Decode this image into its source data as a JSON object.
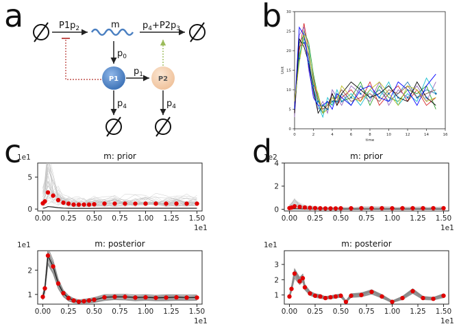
{
  "panels": {
    "a": {
      "letter": "a",
      "labels": {
        "rate_in": "P1p",
        "rate_in_sub": "2",
        "mrna": "m",
        "rate_out": "p",
        "rate_out_sub": "4",
        "rate_out_mid": "+P2p",
        "rate_out_sub2": "3",
        "p0": "p",
        "p0_sub": "0",
        "p1": "p",
        "p1_sub": "1",
        "p4_left": "p",
        "p4_left_sub": "4",
        "p4_right": "p",
        "p4_right_sub": "4",
        "protein1": "P1",
        "protein2": "P2"
      },
      "colors": {
        "p1_node": "#4f86c6",
        "p2_node": "#f5d3b3",
        "mrna_wave": "#4a7fc1",
        "repression": "#c0504d",
        "activation": "#9bbb59"
      }
    },
    "b": {
      "letter": "b",
      "chart_data": {
        "type": "line",
        "xlabel": "time",
        "ylabel": "Unit",
        "xlim": [
          0,
          16
        ],
        "ylim": [
          0,
          30
        ],
        "xticks": [
          "0",
          "2",
          "4",
          "6",
          "8",
          "10",
          "12",
          "14",
          "16"
        ],
        "yticks": [
          "0",
          "5",
          "10",
          "15",
          "20",
          "25",
          "30"
        ],
        "x": [
          0,
          0.5,
          1,
          1.5,
          2,
          2.5,
          3,
          3.5,
          4,
          4.5,
          5,
          6,
          7,
          8,
          9,
          10,
          11,
          12,
          13,
          14,
          15
        ],
        "series": [
          {
            "color": "#1f77b4",
            "values": [
              5,
              22,
              24,
              18,
              10,
              6,
              4,
              5,
              8,
              7,
              9,
              6,
              11,
              8,
              10,
              7,
              9,
              12,
              8,
              10,
              9
            ]
          },
          {
            "color": "#d62728",
            "values": [
              4,
              20,
              27,
              20,
              12,
              7,
              5,
              6,
              9,
              6,
              8,
              10,
              7,
              12,
              6,
              9,
              11,
              7,
              10,
              6,
              8
            ]
          },
          {
            "color": "#2ca02c",
            "values": [
              6,
              18,
              25,
              22,
              14,
              8,
              4,
              7,
              6,
              9,
              7,
              8,
              12,
              6,
              11,
              8,
              7,
              10,
              9,
              11,
              5
            ]
          },
          {
            "color": "#9467bd",
            "values": [
              3,
              24,
              26,
              15,
              9,
              5,
              7,
              4,
              10,
              8,
              6,
              11,
              9,
              7,
              12,
              6,
              10,
              8,
              11,
              7,
              12
            ]
          },
          {
            "color": "#17becf",
            "values": [
              5,
              19,
              23,
              21,
              11,
              6,
              3,
              8,
              6,
              10,
              7,
              9,
              6,
              10,
              8,
              12,
              6,
              9,
              7,
              13,
              9
            ]
          },
          {
            "color": "#8c564b",
            "values": [
              6,
              21,
              22,
              19,
              13,
              7,
              5,
              6,
              7,
              8,
              10,
              7,
              8,
              9,
              7,
              10,
              9,
              11,
              8,
              9,
              10
            ]
          },
          {
            "color": "#000000",
            "values": [
              4,
              23,
              21,
              17,
              10,
              4,
              6,
              5,
              9,
              6,
              9,
              12,
              10,
              8,
              9,
              11,
              8,
              7,
              12,
              8,
              6
            ]
          },
          {
            "color": "#0000ff",
            "values": [
              5,
              26,
              24,
              16,
              8,
              6,
              6,
              7,
              5,
              9,
              8,
              6,
              10,
              11,
              8,
              7,
              12,
              10,
              6,
              11,
              14
            ]
          },
          {
            "color": "#bcbd22",
            "values": [
              7,
              17,
              24,
              20,
              12,
              9,
              4,
              5,
              8,
              7,
              11,
              8,
              7,
              10,
              12,
              9,
              6,
              11,
              10,
              7,
              8
            ]
          }
        ],
        "data_points": {
          "x": [
            0.5,
            1,
            1.5,
            2,
            2.5,
            3,
            3.5,
            4,
            4.5,
            5,
            6,
            7,
            8,
            9,
            10,
            11,
            12,
            13,
            14,
            15
          ],
          "y": [
            18,
            22,
            17,
            11,
            7,
            6,
            5,
            7,
            7,
            7,
            8,
            9,
            8,
            8,
            9,
            8,
            8,
            8,
            8,
            9
          ]
        }
      }
    },
    "c": {
      "letter": "c",
      "prior": {
        "title": "m: prior",
        "ymult": "1e1",
        "xmult": "1e1",
        "xlim": [
          -0.05,
          1.55
        ],
        "ylim": [
          -0.3,
          7.2
        ],
        "yticks": [
          "0",
          "5"
        ],
        "ytick_vals": [
          0,
          5
        ],
        "xticks": [
          "0.00",
          "0.25",
          "0.50",
          "0.75",
          "1.00",
          "1.25",
          "1.50"
        ],
        "xtick_vals": [
          0,
          0.25,
          0.5,
          0.75,
          1,
          1.25,
          1.5
        ],
        "points_x": [
          0,
          0.02,
          0.05,
          0.1,
          0.15,
          0.2,
          0.25,
          0.3,
          0.35,
          0.4,
          0.45,
          0.5,
          0.6,
          0.7,
          0.8,
          0.9,
          1.0,
          1.1,
          1.2,
          1.3,
          1.4,
          1.5
        ],
        "points_y": [
          0.9,
          1.2,
          2.6,
          2.1,
          1.4,
          1.0,
          0.85,
          0.7,
          0.7,
          0.7,
          0.7,
          0.75,
          0.85,
          0.85,
          0.85,
          0.85,
          0.85,
          0.85,
          0.85,
          0.85,
          0.85,
          0.85
        ]
      },
      "posterior": {
        "title": "m: posterior",
        "ymult": "1e1",
        "xmult": "1e1",
        "xlim": [
          -0.05,
          1.55
        ],
        "ylim": [
          0.6,
          2.8
        ],
        "yticks": [
          "1",
          "2"
        ],
        "ytick_vals": [
          1,
          2
        ],
        "xticks": [
          "0.00",
          "0.25",
          "0.50",
          "0.75",
          "1.00",
          "1.25",
          "1.50"
        ],
        "xtick_vals": [
          0,
          0.25,
          0.5,
          0.75,
          1,
          1.25,
          1.5
        ],
        "points_x": [
          0,
          0.02,
          0.05,
          0.1,
          0.15,
          0.2,
          0.25,
          0.3,
          0.35,
          0.4,
          0.45,
          0.5,
          0.6,
          0.7,
          0.8,
          0.9,
          1.0,
          1.1,
          1.2,
          1.3,
          1.4,
          1.5
        ],
        "points_y": [
          0.9,
          1.25,
          2.6,
          2.15,
          1.45,
          1.05,
          0.85,
          0.75,
          0.7,
          0.72,
          0.75,
          0.78,
          0.88,
          0.9,
          0.9,
          0.87,
          0.88,
          0.86,
          0.87,
          0.88,
          0.87,
          0.87
        ]
      }
    },
    "d": {
      "letter": "d",
      "prior": {
        "title": "m: prior",
        "ymult": "1e2",
        "xmult": "1e1",
        "xlim": [
          -0.05,
          1.55
        ],
        "ylim": [
          -0.15,
          4.0
        ],
        "yticks": [
          "0",
          "2",
          "4"
        ],
        "ytick_vals": [
          0,
          2,
          4
        ],
        "xticks": [
          "0.00",
          "0.25",
          "0.50",
          "0.75",
          "1.00",
          "1.25",
          "1.50"
        ],
        "xtick_vals": [
          0,
          0.25,
          0.5,
          0.75,
          1,
          1.25,
          1.5
        ],
        "points_x": [
          0,
          0.02,
          0.05,
          0.1,
          0.15,
          0.2,
          0.25,
          0.3,
          0.35,
          0.4,
          0.45,
          0.5,
          0.6,
          0.7,
          0.8,
          0.9,
          1.0,
          1.1,
          1.2,
          1.3,
          1.4,
          1.5
        ],
        "points_y": [
          0.1,
          0.14,
          0.25,
          0.2,
          0.15,
          0.12,
          0.1,
          0.08,
          0.07,
          0.07,
          0.07,
          0.08,
          0.08,
          0.09,
          0.09,
          0.09,
          0.08,
          0.09,
          0.09,
          0.09,
          0.09,
          0.09
        ]
      },
      "posterior": {
        "title": "m: posterior",
        "ymult": "1e1",
        "xmult": "1e1",
        "xlim": [
          -0.05,
          1.55
        ],
        "ylim": [
          0.4,
          3.9
        ],
        "yticks": [
          "1",
          "2",
          "3"
        ],
        "ytick_vals": [
          1,
          2,
          3
        ],
        "xticks": [
          "0.00",
          "0.25",
          "0.50",
          "0.75",
          "1.00",
          "1.25",
          "1.50"
        ],
        "xtick_vals": [
          0,
          0.25,
          0.5,
          0.75,
          1,
          1.25,
          1.5
        ],
        "points_x": [
          0,
          0.02,
          0.05,
          0.1,
          0.13,
          0.15,
          0.2,
          0.25,
          0.3,
          0.35,
          0.4,
          0.45,
          0.5,
          0.55,
          0.6,
          0.7,
          0.8,
          0.9,
          1.0,
          1.1,
          1.2,
          1.3,
          1.4,
          1.5
        ],
        "points_y": [
          0.9,
          1.4,
          2.4,
          1.9,
          2.1,
          1.5,
          1.1,
          0.95,
          0.9,
          0.8,
          0.85,
          0.9,
          0.95,
          0.55,
          0.95,
          1.0,
          1.2,
          0.9,
          0.55,
          0.8,
          1.25,
          0.8,
          0.75,
          0.95
        ]
      }
    }
  }
}
